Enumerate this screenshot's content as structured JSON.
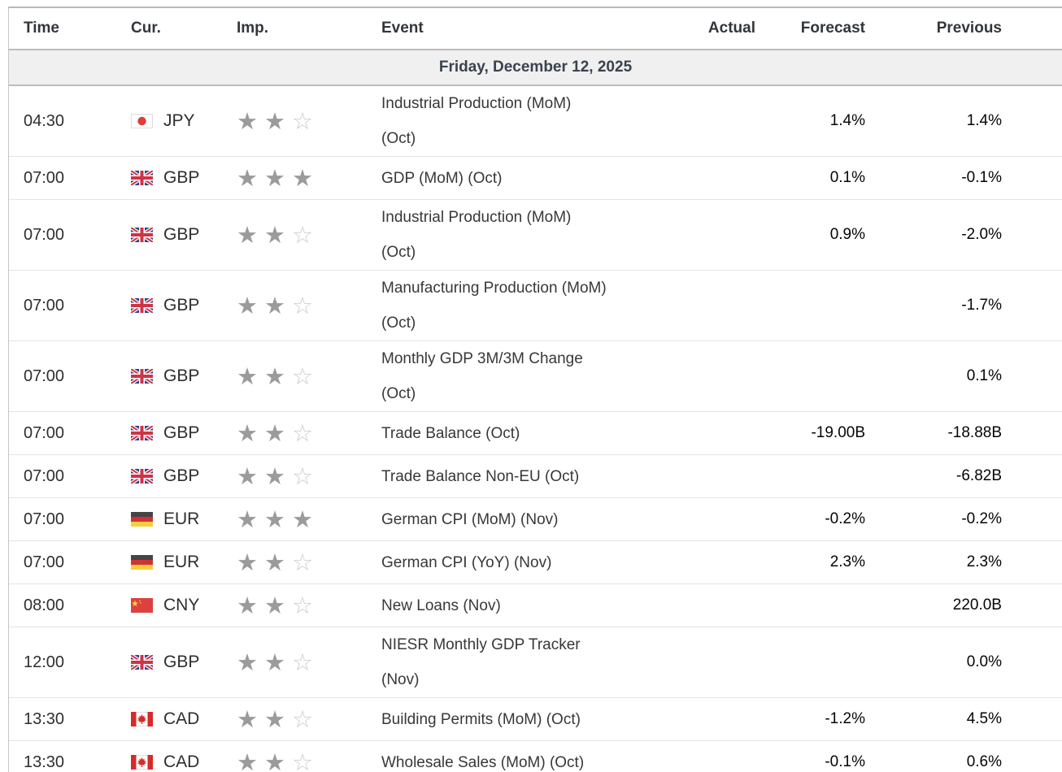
{
  "table": {
    "columns": [
      {
        "key": "time",
        "label": "Time"
      },
      {
        "key": "cur",
        "label": "Cur."
      },
      {
        "key": "imp",
        "label": "Imp."
      },
      {
        "key": "event",
        "label": "Event"
      },
      {
        "key": "actual",
        "label": "Actual"
      },
      {
        "key": "forecast",
        "label": "Forecast"
      },
      {
        "key": "previous",
        "label": "Previous"
      }
    ],
    "date_header": "Friday, December 12, 2025",
    "importance_max": 3,
    "rows": [
      {
        "time": "04:30",
        "currency": "JPY",
        "flag": "jp",
        "importance": 2,
        "event_lines": [
          "Industrial Production (MoM)",
          "(Oct)"
        ],
        "actual": "",
        "forecast": "1.4%",
        "previous": "1.4%"
      },
      {
        "time": "07:00",
        "currency": "GBP",
        "flag": "gb",
        "importance": 3,
        "event_lines": [
          "GDP (MoM) (Oct)"
        ],
        "actual": "",
        "forecast": "0.1%",
        "previous": "-0.1%"
      },
      {
        "time": "07:00",
        "currency": "GBP",
        "flag": "gb",
        "importance": 2,
        "event_lines": [
          "Industrial Production (MoM)",
          "(Oct)"
        ],
        "actual": "",
        "forecast": "0.9%",
        "previous": "-2.0%"
      },
      {
        "time": "07:00",
        "currency": "GBP",
        "flag": "gb",
        "importance": 2,
        "event_lines": [
          "Manufacturing Production (MoM)",
          "(Oct)"
        ],
        "actual": "",
        "forecast": "",
        "previous": "-1.7%"
      },
      {
        "time": "07:00",
        "currency": "GBP",
        "flag": "gb",
        "importance": 2,
        "event_lines": [
          "Monthly GDP 3M/3M Change",
          "(Oct)"
        ],
        "actual": "",
        "forecast": "",
        "previous": "0.1%"
      },
      {
        "time": "07:00",
        "currency": "GBP",
        "flag": "gb",
        "importance": 2,
        "event_lines": [
          "Trade Balance (Oct)"
        ],
        "actual": "",
        "forecast": "-19.00B",
        "previous": "-18.88B"
      },
      {
        "time": "07:00",
        "currency": "GBP",
        "flag": "gb",
        "importance": 2,
        "event_lines": [
          "Trade Balance Non-EU (Oct)"
        ],
        "actual": "",
        "forecast": "",
        "previous": "-6.82B"
      },
      {
        "time": "07:00",
        "currency": "EUR",
        "flag": "de",
        "importance": 3,
        "event_lines": [
          "German CPI (MoM) (Nov)"
        ],
        "actual": "",
        "forecast": "-0.2%",
        "previous": "-0.2%"
      },
      {
        "time": "07:00",
        "currency": "EUR",
        "flag": "de",
        "importance": 2,
        "event_lines": [
          "German CPI (YoY) (Nov)"
        ],
        "actual": "",
        "forecast": "2.3%",
        "previous": "2.3%"
      },
      {
        "time": "08:00",
        "currency": "CNY",
        "flag": "cn",
        "importance": 2,
        "event_lines": [
          "New Loans (Nov)"
        ],
        "actual": "",
        "forecast": "",
        "previous": "220.0B"
      },
      {
        "time": "12:00",
        "currency": "GBP",
        "flag": "gb",
        "importance": 2,
        "event_lines": [
          "NIESR Monthly GDP Tracker",
          "(Nov)"
        ],
        "actual": "",
        "forecast": "",
        "previous": "0.0%"
      },
      {
        "time": "13:30",
        "currency": "CAD",
        "flag": "ca",
        "importance": 2,
        "event_lines": [
          "Building Permits (MoM) (Oct)"
        ],
        "actual": "",
        "forecast": "-1.2%",
        "previous": "4.5%"
      },
      {
        "time": "13:30",
        "currency": "CAD",
        "flag": "ca",
        "importance": 2,
        "event_lines": [
          "Wholesale Sales (MoM) (Oct)"
        ],
        "actual": "",
        "forecast": "-0.1%",
        "previous": "0.6%"
      }
    ]
  },
  "icons": {
    "star_filled": "★",
    "star_empty": "☆"
  },
  "colors": {
    "date_row_bg": "#f0f0f0",
    "star_filled": "#9b9b9b",
    "star_empty": "#cbcbcb",
    "row_border": "#e4e4e4",
    "section_border": "#bcbcbc"
  }
}
